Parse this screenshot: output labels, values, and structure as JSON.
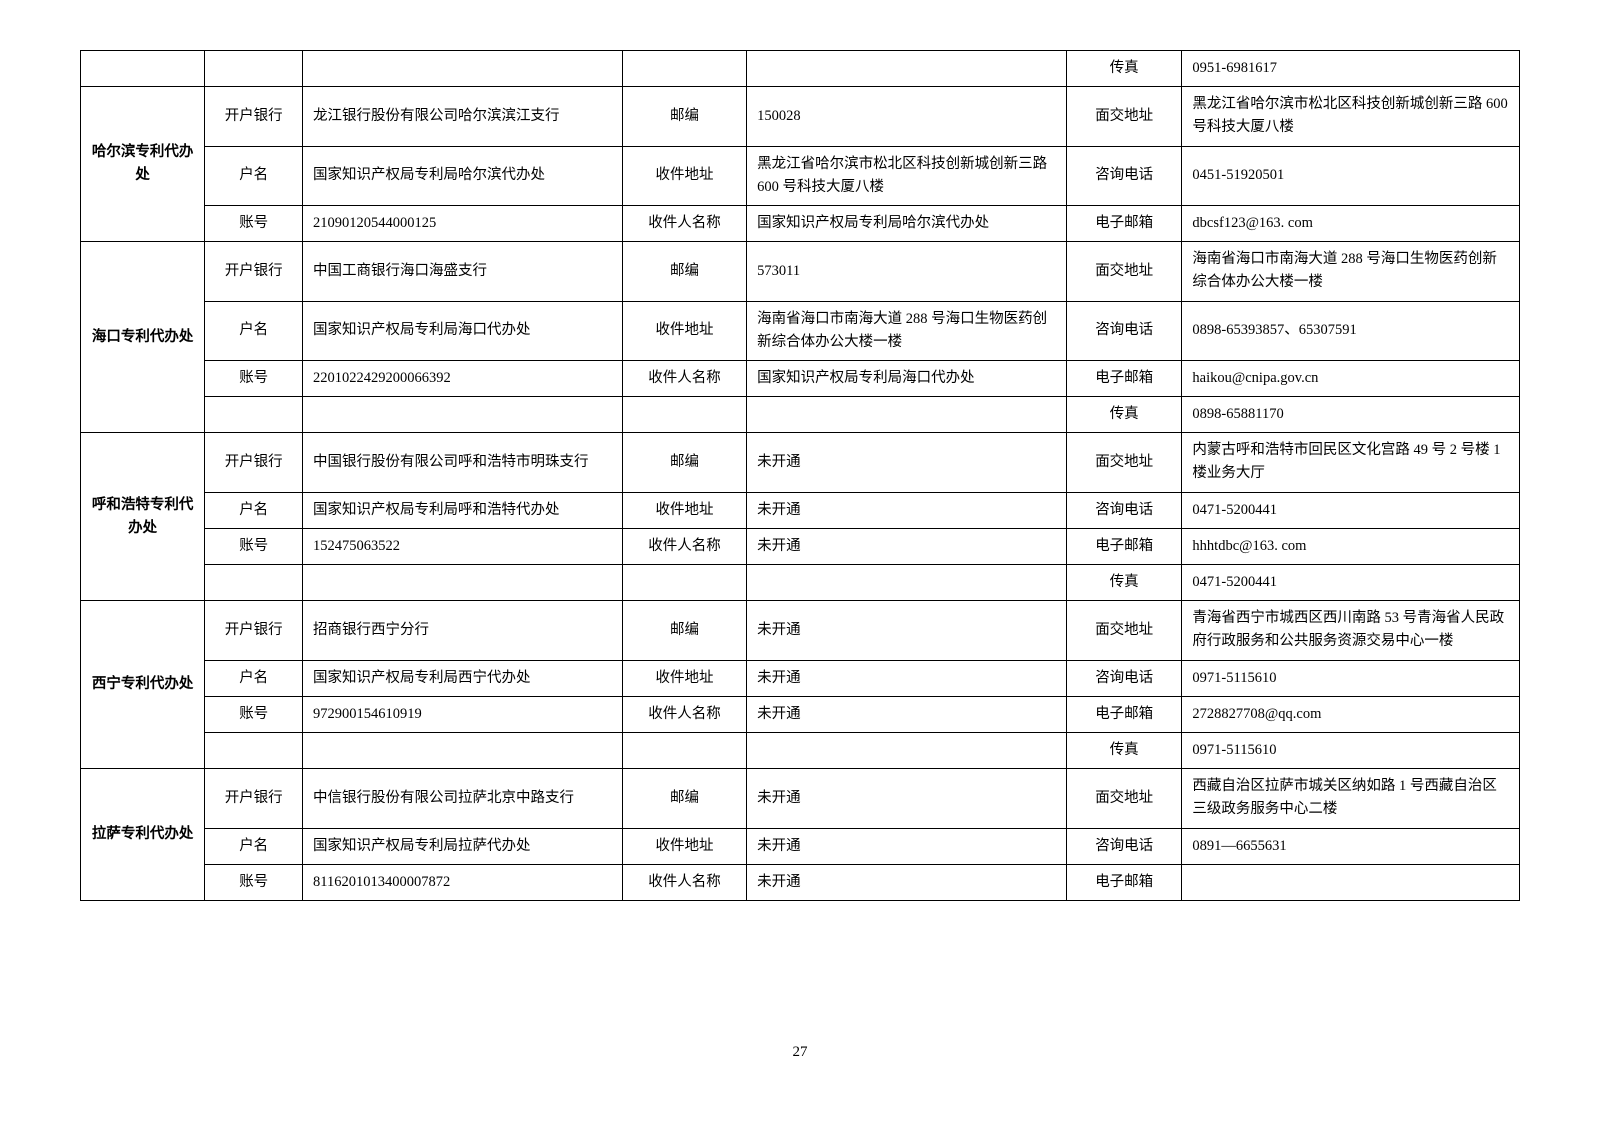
{
  "page_number": "27",
  "labels": {
    "bank": "开户银行",
    "account_name": "户名",
    "account_no": "账号",
    "postcode": "邮编",
    "recv_addr": "收件地址",
    "recv_name": "收件人名称",
    "addr": "面交地址",
    "phone": "咨询电话",
    "email": "电子邮箱",
    "fax": "传真"
  },
  "offices": [
    {
      "name": "",
      "rows": [
        {
          "l1": "",
          "v1": "",
          "l2": "",
          "v2": "",
          "l3": "传真",
          "v3": "0951-6981617"
        }
      ]
    },
    {
      "name": "哈尔滨专利代办处",
      "rows": [
        {
          "l1": "开户银行",
          "v1": "龙江银行股份有限公司哈尔滨滨江支行",
          "l2": "邮编",
          "v2": "150028",
          "l3": "面交地址",
          "v3": "黑龙江省哈尔滨市松北区科技创新城创新三路 600 号科技大厦八楼"
        },
        {
          "l1": "户名",
          "v1": "国家知识产权局专利局哈尔滨代办处",
          "l2": "收件地址",
          "v2": "黑龙江省哈尔滨市松北区科技创新城创新三路 600 号科技大厦八楼",
          "l3": "咨询电话",
          "v3": "0451-51920501"
        },
        {
          "l1": "账号",
          "v1": "21090120544000125",
          "l2": "收件人名称",
          "v2": "国家知识产权局专利局哈尔滨代办处",
          "l3": "电子邮箱",
          "v3": "dbcsf123@163. com"
        }
      ]
    },
    {
      "name": "海口专利代办处",
      "rows": [
        {
          "l1": "开户银行",
          "v1": "中国工商银行海口海盛支行",
          "l2": "邮编",
          "v2": "573011",
          "l3": "面交地址",
          "v3": "海南省海口市南海大道 288 号海口生物医药创新综合体办公大楼一楼"
        },
        {
          "l1": "户名",
          "v1": "国家知识产权局专利局海口代办处",
          "l2": "收件地址",
          "v2": "海南省海口市南海大道 288 号海口生物医药创新综合体办公大楼一楼",
          "l3": "咨询电话",
          "v3": "0898-65393857、65307591"
        },
        {
          "l1": "账号",
          "v1": "2201022429200066392",
          "l2": "收件人名称",
          "v2": "国家知识产权局专利局海口代办处",
          "l3": "电子邮箱",
          "v3": "haikou@cnipa.gov.cn"
        },
        {
          "l1": "",
          "v1": "",
          "l2": "",
          "v2": "",
          "l3": "传真",
          "v3": "0898-65881170"
        }
      ]
    },
    {
      "name": "呼和浩特专利代办处",
      "rows": [
        {
          "l1": "开户银行",
          "v1": "中国银行股份有限公司呼和浩特市明珠支行",
          "l2": "邮编",
          "v2": "未开通",
          "l3": "面交地址",
          "v3": "内蒙古呼和浩特市回民区文化宫路 49 号 2 号楼 1 楼业务大厅"
        },
        {
          "l1": "户名",
          "v1": "国家知识产权局专利局呼和浩特代办处",
          "l2": "收件地址",
          "v2": "未开通",
          "l3": "咨询电话",
          "v3": "0471-5200441"
        },
        {
          "l1": "账号",
          "v1": "152475063522",
          "l2": "收件人名称",
          "v2": "未开通",
          "l3": "电子邮箱",
          "v3": "hhhtdbc@163. com"
        },
        {
          "l1": "",
          "v1": "",
          "l2": "",
          "v2": "",
          "l3": "传真",
          "v3": "0471-5200441"
        }
      ]
    },
    {
      "name": "西宁专利代办处",
      "rows": [
        {
          "l1": "开户银行",
          "v1": "招商银行西宁分行",
          "l2": "邮编",
          "v2": "未开通",
          "l3": "面交地址",
          "v3": "青海省西宁市城西区西川南路 53 号青海省人民政府行政服务和公共服务资源交易中心一楼"
        },
        {
          "l1": "户名",
          "v1": "国家知识产权局专利局西宁代办处",
          "l2": "收件地址",
          "v2": "未开通",
          "l3": "咨询电话",
          "v3": "0971-5115610"
        },
        {
          "l1": "账号",
          "v1": "972900154610919",
          "l2": "收件人名称",
          "v2": "未开通",
          "l3": "电子邮箱",
          "v3": "2728827708@qq.com"
        },
        {
          "l1": "",
          "v1": "",
          "l2": "",
          "v2": "",
          "l3": "传真",
          "v3": "0971-5115610"
        }
      ]
    },
    {
      "name": "拉萨专利代办处",
      "rows": [
        {
          "l1": "开户银行",
          "v1": "中信银行股份有限公司拉萨北京中路支行",
          "l2": "邮编",
          "v2": "未开通",
          "l3": "面交地址",
          "v3": "西藏自治区拉萨市城关区纳如路 1 号西藏自治区三级政务服务中心二楼"
        },
        {
          "l1": "户名",
          "v1": "国家知识产权局专利局拉萨代办处",
          "l2": "收件地址",
          "v2": "未开通",
          "l3": "咨询电话",
          "v3": "0891—6655631"
        },
        {
          "l1": "账号",
          "v1": "8116201013400007872",
          "l2": "收件人名称",
          "v2": "未开通",
          "l3": "电子邮箱",
          "v3": ""
        }
      ]
    }
  ]
}
